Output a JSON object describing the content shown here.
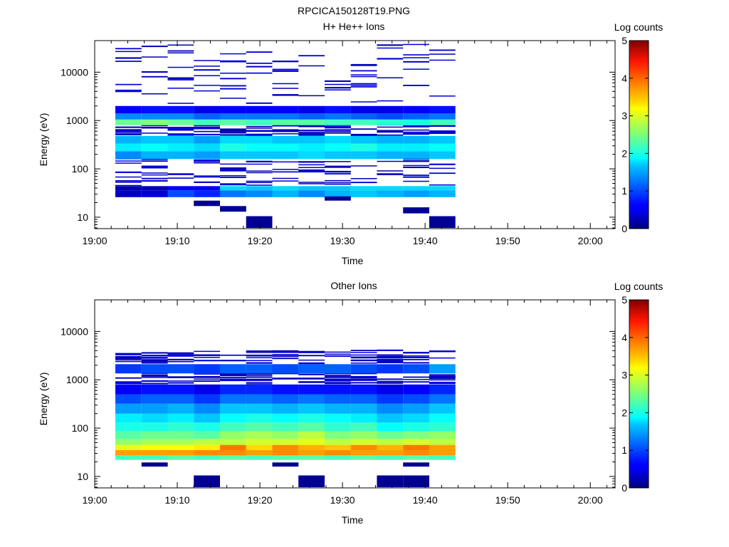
{
  "figure_title": "RPCICA150128T19.PNG",
  "chart_data": [
    {
      "type": "heatmap",
      "title": "H+ He++ Ions",
      "xlabel": "Time",
      "ylabel": "Energy (eV)",
      "xticks": [
        "19:00",
        "19:10",
        "19:20",
        "19:30",
        "19:40",
        "19:50",
        "20:00"
      ],
      "xlim": [
        "19:00",
        "20:03"
      ],
      "ylim": [
        5.8,
        45000
      ],
      "yscale": "log",
      "yticks": [
        10,
        100,
        1000,
        10000
      ],
      "ytick_labels": [
        "10",
        "100",
        "1000",
        "10000"
      ],
      "colorbar": {
        "label": "Log counts",
        "range": [
          0,
          5
        ],
        "ticks": [
          "0",
          "1",
          "2",
          "3",
          "4",
          "5"
        ]
      },
      "time_bins": [
        "19:02:30",
        "19:05:40",
        "19:08:50",
        "19:12:00",
        "19:15:10",
        "19:18:20",
        "19:21:30",
        "19:24:40",
        "19:27:50",
        "19:31:00",
        "19:34:10",
        "19:37:20",
        "19:40:30",
        "19:43:40"
      ],
      "energy_bands": [
        {
          "e_min": 26,
          "e_max": 36,
          "values": [
            0.3,
            0.4,
            1.0,
            0.8,
            1.2,
            1.3,
            1.5,
            1.3,
            1.5,
            1.6,
            1.5,
            1.4,
            1.5
          ]
        },
        {
          "e_min": 36,
          "e_max": 44,
          "values": [
            0.2,
            0.3,
            0.6,
            0.6,
            1.7,
            1.6,
            1.7,
            1.6,
            1.6,
            1.7,
            1.7,
            1.7,
            1.7
          ]
        },
        {
          "e_min": 160,
          "e_max": 230,
          "values": [
            1.3,
            1.5,
            1.5,
            1.4,
            1.6,
            1.6,
            1.6,
            1.7,
            1.6,
            1.6,
            1.5,
            1.5,
            1.6
          ]
        },
        {
          "e_min": 230,
          "e_max": 330,
          "values": [
            1.8,
            1.9,
            1.8,
            1.7,
            2.0,
            1.9,
            1.9,
            1.8,
            1.9,
            2.0,
            1.8,
            1.8,
            1.9
          ]
        },
        {
          "e_min": 330,
          "e_max": 480,
          "values": [
            1.5,
            1.6,
            1.6,
            1.4,
            1.7,
            1.7,
            1.6,
            1.6,
            1.7,
            1.6,
            1.5,
            1.5,
            1.6
          ]
        },
        {
          "e_min": 800,
          "e_max": 1050,
          "values": [
            2.4,
            2.5,
            2.4,
            2.2,
            2.3,
            2.2,
            2.3,
            2.3,
            2.2,
            2.2,
            2.1,
            2.0,
            2.2
          ]
        },
        {
          "e_min": 1050,
          "e_max": 1400,
          "values": [
            1.3,
            1.3,
            1.3,
            1.1,
            1.2,
            1.2,
            1.2,
            1.1,
            1.2,
            1.1,
            1.0,
            1.1,
            1.2
          ]
        },
        {
          "e_min": 1400,
          "e_max": 2000,
          "values": [
            0.6,
            0.7,
            0.7,
            0.5,
            0.6,
            0.6,
            0.6,
            0.5,
            0.7,
            0.5,
            0.5,
            0.6,
            0.7
          ]
        }
      ],
      "sparse_counts": 0.2
    },
    {
      "type": "heatmap",
      "title": "Other Ions",
      "xlabel": "Time",
      "ylabel": "Energy (eV)",
      "xticks": [
        "19:00",
        "19:10",
        "19:20",
        "19:30",
        "19:40",
        "19:50",
        "20:00"
      ],
      "xlim": [
        "19:00",
        "20:03"
      ],
      "ylim": [
        5.8,
        45000
      ],
      "yscale": "log",
      "yticks": [
        10,
        100,
        1000,
        10000
      ],
      "ytick_labels": [
        "10",
        "100",
        "1000",
        "10000"
      ],
      "colorbar": {
        "label": "Log counts",
        "range": [
          0,
          5
        ],
        "ticks": [
          "0",
          "1",
          "2",
          "3",
          "4",
          "5"
        ]
      },
      "time_bins": [
        "19:02:30",
        "19:05:40",
        "19:08:50",
        "19:12:00",
        "19:15:10",
        "19:18:20",
        "19:21:30",
        "19:24:40",
        "19:27:50",
        "19:31:00",
        "19:34:10",
        "19:37:20",
        "19:40:30",
        "19:43:40"
      ],
      "energy_bands": [
        {
          "e_min": 22,
          "e_max": 27,
          "values": [
            2.2,
            2.2,
            2.3,
            2.2,
            2.3,
            2.2,
            2.3,
            2.3,
            2.2,
            2.3,
            2.2,
            2.3,
            2.2
          ]
        },
        {
          "e_min": 27,
          "e_max": 35,
          "values": [
            3.6,
            3.6,
            3.6,
            3.7,
            3.7,
            3.6,
            3.7,
            3.6,
            3.7,
            3.6,
            3.6,
            3.7,
            3.6
          ]
        },
        {
          "e_min": 35,
          "e_max": 45,
          "values": [
            3.0,
            3.1,
            3.1,
            3.2,
            3.8,
            3.3,
            3.7,
            3.5,
            3.4,
            3.7,
            3.5,
            3.8,
            3.6
          ]
        },
        {
          "e_min": 45,
          "e_max": 60,
          "values": [
            2.6,
            2.7,
            2.7,
            2.8,
            2.8,
            2.9,
            2.9,
            3.0,
            2.8,
            2.9,
            2.8,
            2.9,
            2.8
          ]
        },
        {
          "e_min": 60,
          "e_max": 85,
          "values": [
            2.3,
            2.4,
            2.4,
            2.3,
            2.6,
            2.7,
            2.6,
            2.8,
            2.5,
            2.6,
            2.4,
            2.5,
            2.6
          ]
        },
        {
          "e_min": 85,
          "e_max": 130,
          "values": [
            2.0,
            2.0,
            2.1,
            2.0,
            2.2,
            2.3,
            2.2,
            2.3,
            2.1,
            2.2,
            1.9,
            2.0,
            2.1
          ]
        },
        {
          "e_min": 130,
          "e_max": 200,
          "values": [
            1.8,
            1.7,
            1.8,
            1.6,
            1.9,
            2.0,
            1.9,
            2.0,
            1.9,
            1.8,
            1.6,
            1.7,
            1.9
          ]
        },
        {
          "e_min": 200,
          "e_max": 320,
          "values": [
            1.4,
            1.4,
            1.5,
            1.3,
            1.6,
            1.6,
            1.5,
            1.6,
            1.5,
            1.5,
            1.3,
            1.4,
            1.6
          ]
        },
        {
          "e_min": 320,
          "e_max": 500,
          "values": [
            1.0,
            1.1,
            1.1,
            0.9,
            1.2,
            1.2,
            1.1,
            1.2,
            1.1,
            1.1,
            0.9,
            1.0,
            1.2
          ]
        },
        {
          "e_min": 500,
          "e_max": 800,
          "values": [
            0.6,
            0.7,
            0.7,
            0.5,
            0.8,
            0.8,
            0.7,
            0.7,
            0.7,
            0.7,
            0.5,
            0.6,
            0.8
          ]
        },
        {
          "e_min": 1350,
          "e_max": 2100,
          "values": [
            0.9,
            1.0,
            1.0,
            0.9,
            1.1,
            1.1,
            1.0,
            1.1,
            1.1,
            1.0,
            0.9,
            1.0,
            1.4
          ]
        }
      ],
      "sparse_counts": 0.2
    }
  ]
}
